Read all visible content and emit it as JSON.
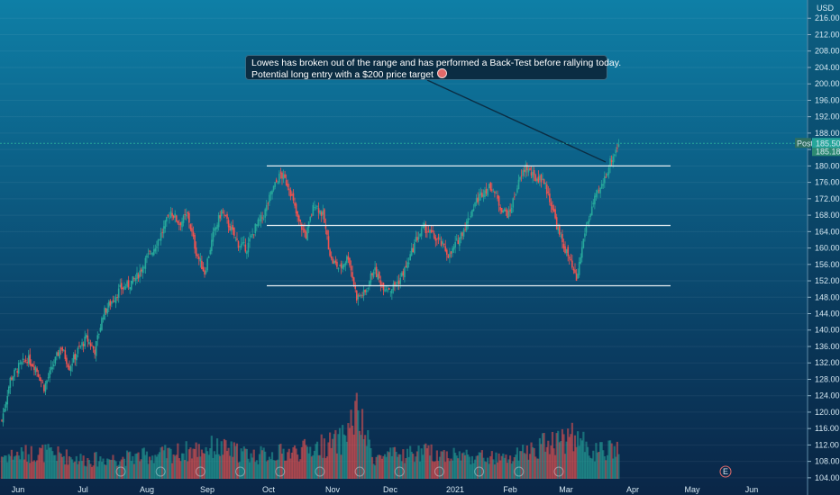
{
  "currency": "USD",
  "price_tag": {
    "label": "Post",
    "value": "185.50",
    "secondary_value": "185.18"
  },
  "annotation": {
    "line1": "Lowes has broken out of the range and has performed a Back-Test before rallying today.",
    "line2": "Potential long entry with a $200 price target",
    "icon": "target-icon"
  },
  "colors": {
    "up": "#26a69a",
    "down": "#ef5350",
    "level": "#e6eef2",
    "price_line": "#26a69a"
  },
  "chart_data": {
    "type": "candlestick",
    "ylim": [
      102,
      220
    ],
    "y_ticks": [
      "104.00",
      "108.00",
      "112.00",
      "116.00",
      "120.00",
      "124.00",
      "128.00",
      "132.00",
      "136.00",
      "140.00",
      "144.00",
      "148.00",
      "152.00",
      "156.00",
      "160.00",
      "164.00",
      "168.00",
      "172.00",
      "176.00",
      "180.00",
      "184.00",
      "188.00",
      "192.00",
      "196.00",
      "200.00",
      "204.00",
      "208.00",
      "212.00",
      "216.00"
    ],
    "x_labels": [
      "Jun",
      "Jul",
      "Aug",
      "Sep",
      "Oct",
      "Nov",
      "Dec",
      "2021",
      "Feb",
      "Mar",
      "Apr",
      "May",
      "Jun"
    ],
    "price_path": [
      [
        0,
        118
      ],
      [
        6,
        128
      ],
      [
        12,
        131
      ],
      [
        18,
        133
      ],
      [
        24,
        131
      ],
      [
        30,
        126
      ],
      [
        36,
        131
      ],
      [
        42,
        136
      ],
      [
        48,
        131
      ],
      [
        54,
        135
      ],
      [
        60,
        138
      ],
      [
        66,
        135
      ],
      [
        72,
        144
      ],
      [
        78,
        147
      ],
      [
        84,
        150
      ],
      [
        90,
        151
      ],
      [
        96,
        153
      ],
      [
        102,
        157
      ],
      [
        108,
        160
      ],
      [
        114,
        164
      ],
      [
        120,
        169
      ],
      [
        126,
        166
      ],
      [
        132,
        168
      ],
      [
        138,
        159
      ],
      [
        144,
        154
      ],
      [
        150,
        163
      ],
      [
        156,
        169
      ],
      [
        162,
        165
      ],
      [
        168,
        161
      ],
      [
        174,
        160
      ],
      [
        180,
        165
      ],
      [
        186,
        168
      ],
      [
        192,
        174
      ],
      [
        198,
        178
      ],
      [
        204,
        175
      ],
      [
        210,
        167
      ],
      [
        216,
        163
      ],
      [
        222,
        171
      ],
      [
        228,
        168
      ],
      [
        234,
        157
      ],
      [
        240,
        155
      ],
      [
        246,
        158
      ],
      [
        252,
        148
      ],
      [
        258,
        149
      ],
      [
        264,
        155
      ],
      [
        270,
        151
      ],
      [
        276,
        150
      ],
      [
        282,
        152
      ],
      [
        288,
        156
      ],
      [
        294,
        162
      ],
      [
        300,
        165
      ],
      [
        306,
        163
      ],
      [
        312,
        161
      ],
      [
        318,
        158
      ],
      [
        324,
        162
      ],
      [
        330,
        166
      ],
      [
        336,
        171
      ],
      [
        342,
        174
      ],
      [
        348,
        175
      ],
      [
        354,
        170
      ],
      [
        360,
        168
      ],
      [
        366,
        175
      ],
      [
        372,
        180
      ],
      [
        378,
        177
      ],
      [
        384,
        177
      ],
      [
        390,
        171
      ],
      [
        396,
        163
      ],
      [
        402,
        158
      ],
      [
        408,
        152
      ],
      [
        414,
        164
      ],
      [
        420,
        171
      ],
      [
        426,
        175
      ],
      [
        432,
        181
      ],
      [
        438,
        185.5
      ]
    ],
    "volume_path": [
      [
        0,
        22
      ],
      [
        30,
        25
      ],
      [
        60,
        18
      ],
      [
        90,
        20
      ],
      [
        120,
        24
      ],
      [
        150,
        30
      ],
      [
        180,
        22
      ],
      [
        210,
        26
      ],
      [
        240,
        35
      ],
      [
        252,
        62
      ],
      [
        264,
        20
      ],
      [
        300,
        25
      ],
      [
        330,
        22
      ],
      [
        360,
        18
      ],
      [
        390,
        36
      ],
      [
        408,
        40
      ],
      [
        420,
        25
      ],
      [
        438,
        28
      ]
    ],
    "range_levels": [
      {
        "name": "range-top",
        "price": 180.0
      },
      {
        "name": "range-mid",
        "price": 165.5
      },
      {
        "name": "range-bottom",
        "price": 150.8
      }
    ],
    "current_price": 185.5,
    "events_count": 12
  }
}
